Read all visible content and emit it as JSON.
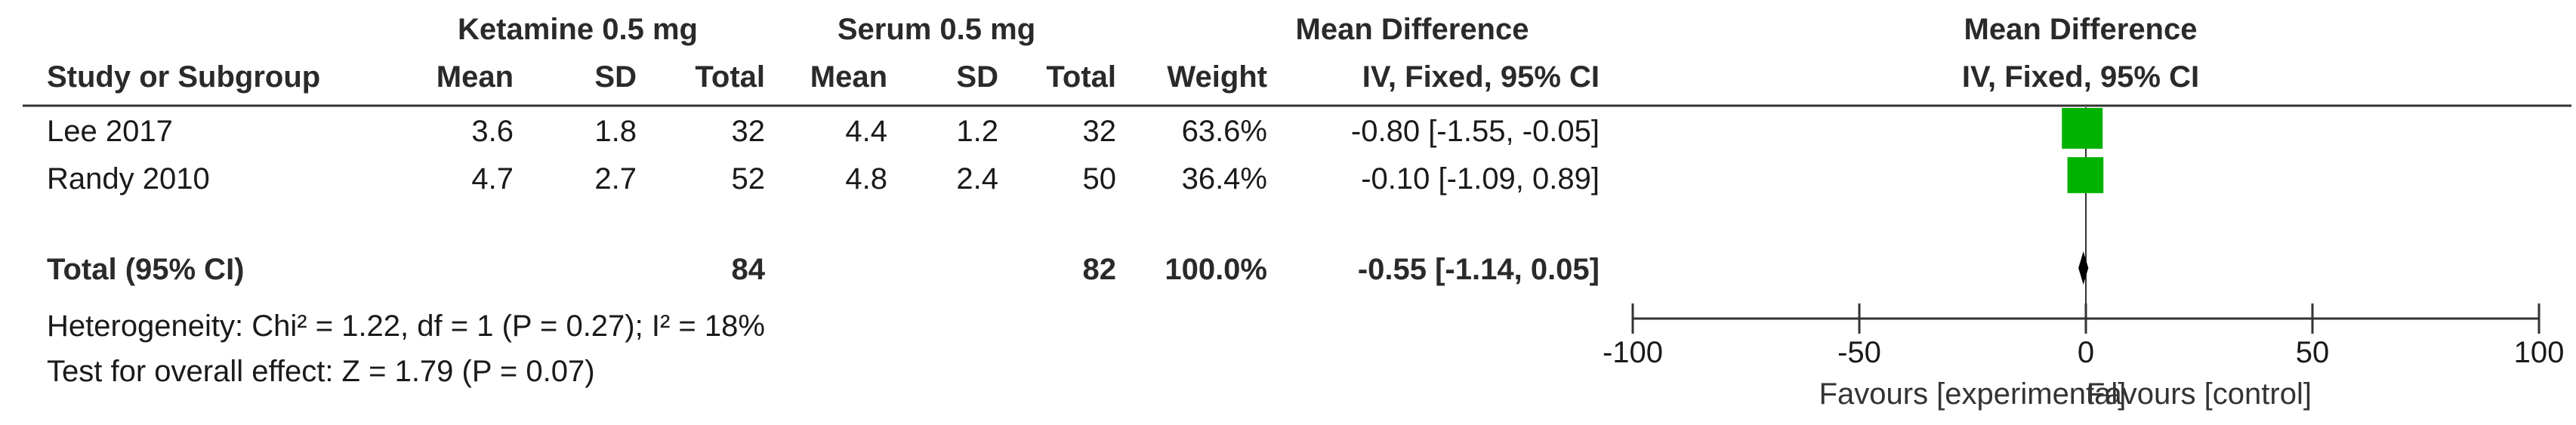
{
  "headers": {
    "group1": "Ketamine 0.5 mg",
    "group2": "Serum 0.5 mg",
    "md_title": "Mean Difference",
    "md_method": "IV, Fixed, 95% CI",
    "plot_title": "Mean Difference",
    "plot_method": "IV, Fixed, 95% CI",
    "study": "Study or Subgroup",
    "mean": "Mean",
    "sd": "SD",
    "total": "Total",
    "weight": "Weight"
  },
  "studies": [
    {
      "name": "Lee 2017",
      "mean1": "3.6",
      "sd1": "1.8",
      "total1": "32",
      "mean2": "4.4",
      "sd2": "1.2",
      "total2": "32",
      "weight": "63.6%",
      "ci_text": "-0.80 [-1.55, -0.05]",
      "md": -0.8,
      "lo": -1.55,
      "hi": -0.05,
      "w": 63.6
    },
    {
      "name": "Randy 2010",
      "mean1": "4.7",
      "sd1": "2.7",
      "total1": "52",
      "mean2": "4.8",
      "sd2": "2.4",
      "total2": "50",
      "weight": "36.4%",
      "ci_text": "-0.10 [-1.09, 0.89]",
      "md": -0.1,
      "lo": -1.09,
      "hi": 0.89,
      "w": 36.4
    }
  ],
  "total": {
    "label": "Total (95% CI)",
    "total1": "84",
    "total2": "82",
    "weight": "100.0%",
    "ci_text": "-0.55 [-1.14, 0.05]",
    "md": -0.55,
    "lo": -1.14,
    "hi": 0.05
  },
  "heterogeneity": "Heterogeneity: Chi² = 1.22, df = 1 (P = 0.27); I² = 18%",
  "overall_effect": "Test for overall effect: Z = 1.79 (P = 0.07)",
  "colors": {
    "square": "#00b200",
    "diamond": "#000000",
    "text": "#1a1a1a"
  },
  "chart_data": {
    "type": "scatter",
    "subtype": "forest",
    "x_range": [
      -100,
      100
    ],
    "ticks": [
      -100,
      -50,
      0,
      50,
      100
    ],
    "tick_labels": [
      "-100",
      "-50",
      "0",
      "50",
      "100"
    ],
    "favours_left": "Favours [experimental]",
    "favours_right": "Favours [control]"
  }
}
